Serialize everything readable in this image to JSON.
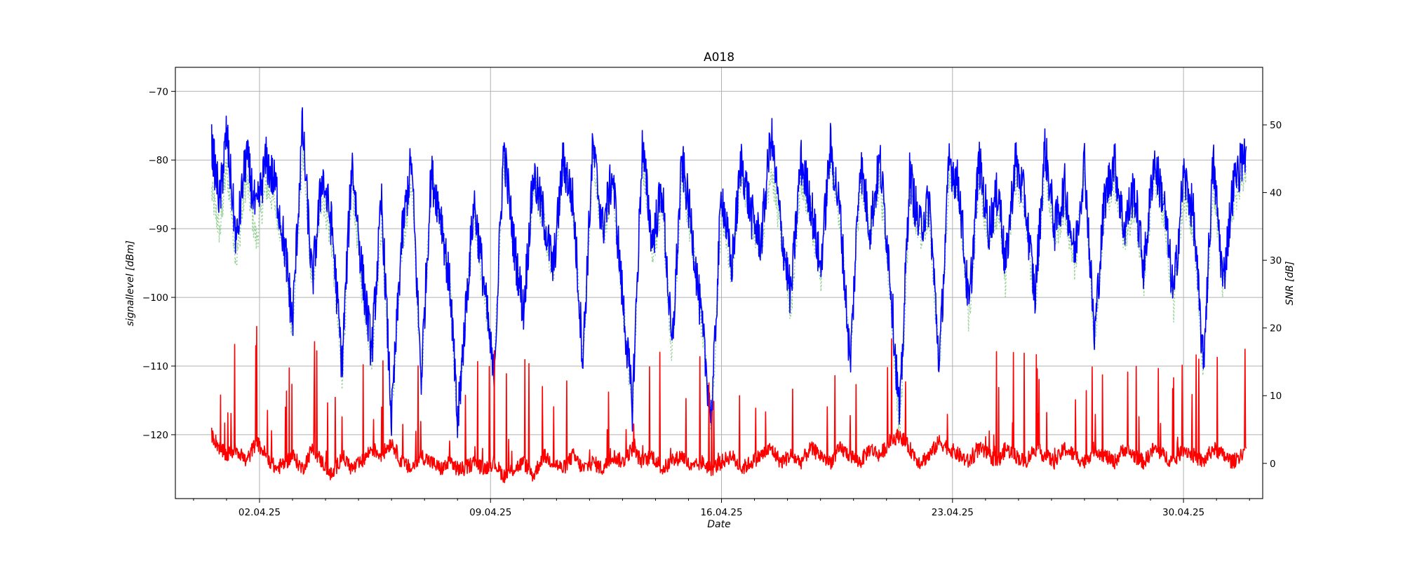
{
  "chart_data": {
    "type": "line",
    "title": "A018",
    "xlabel": "Date",
    "ylabel_left": "signallevel [dBm]",
    "ylabel_right": "SNR [dB]",
    "x_ticks": [
      "02.04.25",
      "09.04.25",
      "16.04.25",
      "23.04.25",
      "30.04.25"
    ],
    "x_tick_days": [
      2,
      9,
      16,
      23,
      30
    ],
    "xlim_days": [
      -0.55,
      32.4
    ],
    "data_range_days": [
      0.55,
      31.9
    ],
    "ylim_left": [
      -129.3,
      -66.5
    ],
    "yticks_left": [
      -120,
      -110,
      -100,
      -90,
      -80,
      -70
    ],
    "ylim_right": [
      -5.2,
      58.5
    ],
    "yticks_right": [
      0,
      10,
      20,
      30,
      40,
      50
    ],
    "grid": true,
    "colors": {
      "signal": "#0000ff",
      "noise": "#ff0000",
      "snr": "#7fc97f"
    },
    "series": [
      {
        "axis": "left",
        "style": "solid",
        "color": "#0000ff",
        "x": [
          0.55,
          0.8,
          1.0,
          1.3,
          1.6,
          1.9,
          2.2,
          2.5,
          2.8,
          3.0,
          3.3,
          3.6,
          3.9,
          4.2,
          4.5,
          4.8,
          5.1,
          5.4,
          5.7,
          6.0,
          6.3,
          6.6,
          6.9,
          7.2,
          7.5,
          7.8,
          8.0,
          8.2,
          8.5,
          8.8,
          9.1,
          9.4,
          9.7,
          10.0,
          10.3,
          10.6,
          10.9,
          11.2,
          11.5,
          11.8,
          12.1,
          12.4,
          12.7,
          13.0,
          13.3,
          13.6,
          13.9,
          14.2,
          14.5,
          14.8,
          15.1,
          15.4,
          15.7,
          16.0,
          16.3,
          16.6,
          16.9,
          17.2,
          17.5,
          17.8,
          18.1,
          18.4,
          18.7,
          19.0,
          19.3,
          19.6,
          19.9,
          20.2,
          20.5,
          20.8,
          21.1,
          21.4,
          21.7,
          22.0,
          22.3,
          22.6,
          22.9,
          23.2,
          23.5,
          23.8,
          24.1,
          24.4,
          24.6,
          24.9,
          25.2,
          25.5,
          25.8,
          26.1,
          26.4,
          26.7,
          27.0,
          27.3,
          27.6,
          27.9,
          28.2,
          28.5,
          28.8,
          29.1,
          29.4,
          29.7,
          30.0,
          30.3,
          30.6,
          30.9,
          31.2,
          31.5,
          31.9
        ],
        "y": [
          -78,
          -86,
          -76,
          -92,
          -79,
          -88,
          -80,
          -84,
          -94,
          -104,
          -75,
          -98,
          -82,
          -90,
          -110,
          -80,
          -96,
          -108,
          -86,
          -118,
          -92,
          -80,
          -112,
          -82,
          -88,
          -100,
          -119,
          -105,
          -86,
          -98,
          -112,
          -78,
          -92,
          -102,
          -82,
          -88,
          -96,
          -80,
          -86,
          -109,
          -78,
          -90,
          -82,
          -100,
          -116,
          -78,
          -92,
          -84,
          -108,
          -80,
          -90,
          -104,
          -118,
          -84,
          -96,
          -80,
          -88,
          -92,
          -76,
          -90,
          -100,
          -80,
          -86,
          -96,
          -78,
          -88,
          -110,
          -80,
          -90,
          -80,
          -96,
          -118,
          -82,
          -90,
          -86,
          -110,
          -80,
          -84,
          -102,
          -80,
          -90,
          -84,
          -96,
          -80,
          -86,
          -100,
          -78,
          -90,
          -84,
          -94,
          -80,
          -106,
          -86,
          -80,
          -90,
          -84,
          -96,
          -80,
          -86,
          -100,
          -82,
          -88,
          -110,
          -80,
          -98,
          -84,
          -78
        ]
      },
      {
        "axis": "left",
        "style": "solid",
        "color": "#ff0000",
        "x": [
          0.55,
          0.8,
          1.0,
          1.3,
          1.6,
          1.9,
          2.2,
          2.5,
          2.8,
          3.0,
          3.3,
          3.6,
          3.9,
          4.2,
          4.5,
          4.8,
          5.1,
          5.4,
          5.7,
          6.0,
          6.3,
          6.6,
          6.9,
          7.2,
          7.5,
          7.8,
          8.0,
          8.2,
          8.5,
          8.8,
          9.1,
          9.4,
          9.7,
          10.0,
          10.3,
          10.6,
          10.9,
          11.2,
          11.5,
          11.8,
          12.1,
          12.4,
          12.7,
          13.0,
          13.3,
          13.6,
          13.9,
          14.2,
          14.5,
          14.8,
          15.1,
          15.4,
          15.7,
          16.0,
          16.3,
          16.6,
          16.9,
          17.2,
          17.5,
          17.8,
          18.1,
          18.4,
          18.7,
          19.0,
          19.3,
          19.6,
          19.9,
          20.2,
          20.5,
          20.8,
          21.1,
          21.4,
          21.7,
          22.0,
          22.3,
          22.6,
          22.9,
          23.2,
          23.5,
          23.8,
          24.1,
          24.4,
          24.6,
          24.9,
          25.2,
          25.5,
          25.8,
          26.1,
          26.4,
          26.7,
          27.0,
          27.3,
          27.6,
          27.9,
          28.2,
          28.5,
          28.8,
          29.1,
          29.4,
          29.7,
          30.0,
          30.3,
          30.6,
          30.9,
          31.2,
          31.5,
          31.9
        ],
        "y": [
          -120,
          -122,
          -123,
          -122,
          -124,
          -121,
          -123,
          -125,
          -124,
          -123,
          -125,
          -122,
          -124,
          -126,
          -123,
          -125,
          -124,
          -122,
          -123,
          -121,
          -124,
          -125,
          -123,
          -124,
          -125,
          -124,
          -125,
          -125,
          -124,
          -125,
          -124,
          -126,
          -125,
          -124,
          -126,
          -123,
          -124,
          -125,
          -123,
          -125,
          -124,
          -125,
          -123,
          -124,
          -122,
          -124,
          -123,
          -125,
          -124,
          -123,
          -125,
          -124,
          -125,
          -124,
          -123,
          -125,
          -124,
          -123,
          -122,
          -124,
          -123,
          -124,
          -122,
          -123,
          -124,
          -122,
          -123,
          -124,
          -122,
          -123,
          -121,
          -120,
          -122,
          -124,
          -123,
          -121,
          -122,
          -123,
          -124,
          -122,
          -123,
          -124,
          -122,
          -123,
          -124,
          -122,
          -123,
          -124,
          -122,
          -123,
          -124,
          -122,
          -123,
          -124,
          -122,
          -123,
          -124,
          -122,
          -123,
          -124,
          -122,
          -123,
          -124,
          -122,
          -123,
          -124,
          -122
        ]
      },
      {
        "axis": "right",
        "style": "dotted",
        "color": "#7fc97f",
        "x": [
          0.55,
          0.8,
          1.0,
          1.3,
          1.6,
          1.9,
          2.2,
          2.5,
          2.8,
          3.0,
          3.3,
          3.6,
          3.9,
          4.2,
          4.5,
          4.8,
          5.1,
          5.4,
          5.7,
          6.0,
          6.3,
          6.6,
          6.9,
          7.2,
          7.5,
          7.8,
          8.0,
          8.2,
          8.5,
          8.8,
          9.1,
          9.4,
          9.7,
          10.0,
          10.3,
          10.6,
          10.9,
          11.2,
          11.5,
          11.8,
          12.1,
          12.4,
          12.7,
          13.0,
          13.3,
          13.6,
          13.9,
          14.2,
          14.5,
          14.8,
          15.1,
          15.4,
          15.7,
          16.0,
          16.3,
          16.6,
          16.9,
          17.2,
          17.5,
          17.8,
          18.1,
          18.4,
          18.7,
          19.0,
          19.3,
          19.6,
          19.9,
          20.2,
          20.5,
          20.8,
          21.1,
          21.4,
          21.7,
          22.0,
          22.3,
          22.6,
          22.9,
          23.2,
          23.5,
          23.8,
          24.1,
          24.4,
          24.6,
          24.9,
          25.2,
          25.5,
          25.8,
          26.1,
          26.4,
          26.7,
          27.0,
          27.3,
          27.6,
          27.9,
          28.2,
          28.5,
          28.8,
          29.1,
          29.4,
          29.7,
          30.0,
          30.3,
          30.6,
          30.9,
          31.2,
          31.5,
          31.9
        ],
        "y": [
          40,
          34,
          44,
          30,
          42,
          33,
          41,
          38,
          30,
          19,
          46,
          26,
          40,
          32,
          12,
          42,
          26,
          16,
          36,
          6,
          31,
          42,
          12,
          42,
          36,
          24,
          5,
          19,
          36,
          26,
          13,
          45,
          33,
          22,
          42,
          36,
          28,
          44,
          38,
          15,
          46,
          33,
          41,
          24,
          8,
          45,
          31,
          38,
          16,
          42,
          33,
          20,
          6,
          38,
          28,
          43,
          36,
          32,
          44,
          34,
          22,
          42,
          37,
          27,
          45,
          36,
          14,
          42,
          34,
          42,
          26,
          4,
          40,
          33,
          37,
          14,
          43,
          39,
          21,
          42,
          33,
          38,
          27,
          42,
          37,
          23,
          44,
          33,
          38,
          29,
          43,
          18,
          37,
          42,
          33,
          38,
          27,
          43,
          37,
          23,
          40,
          34,
          14,
          42,
          26,
          38,
          44
        ]
      }
    ]
  }
}
